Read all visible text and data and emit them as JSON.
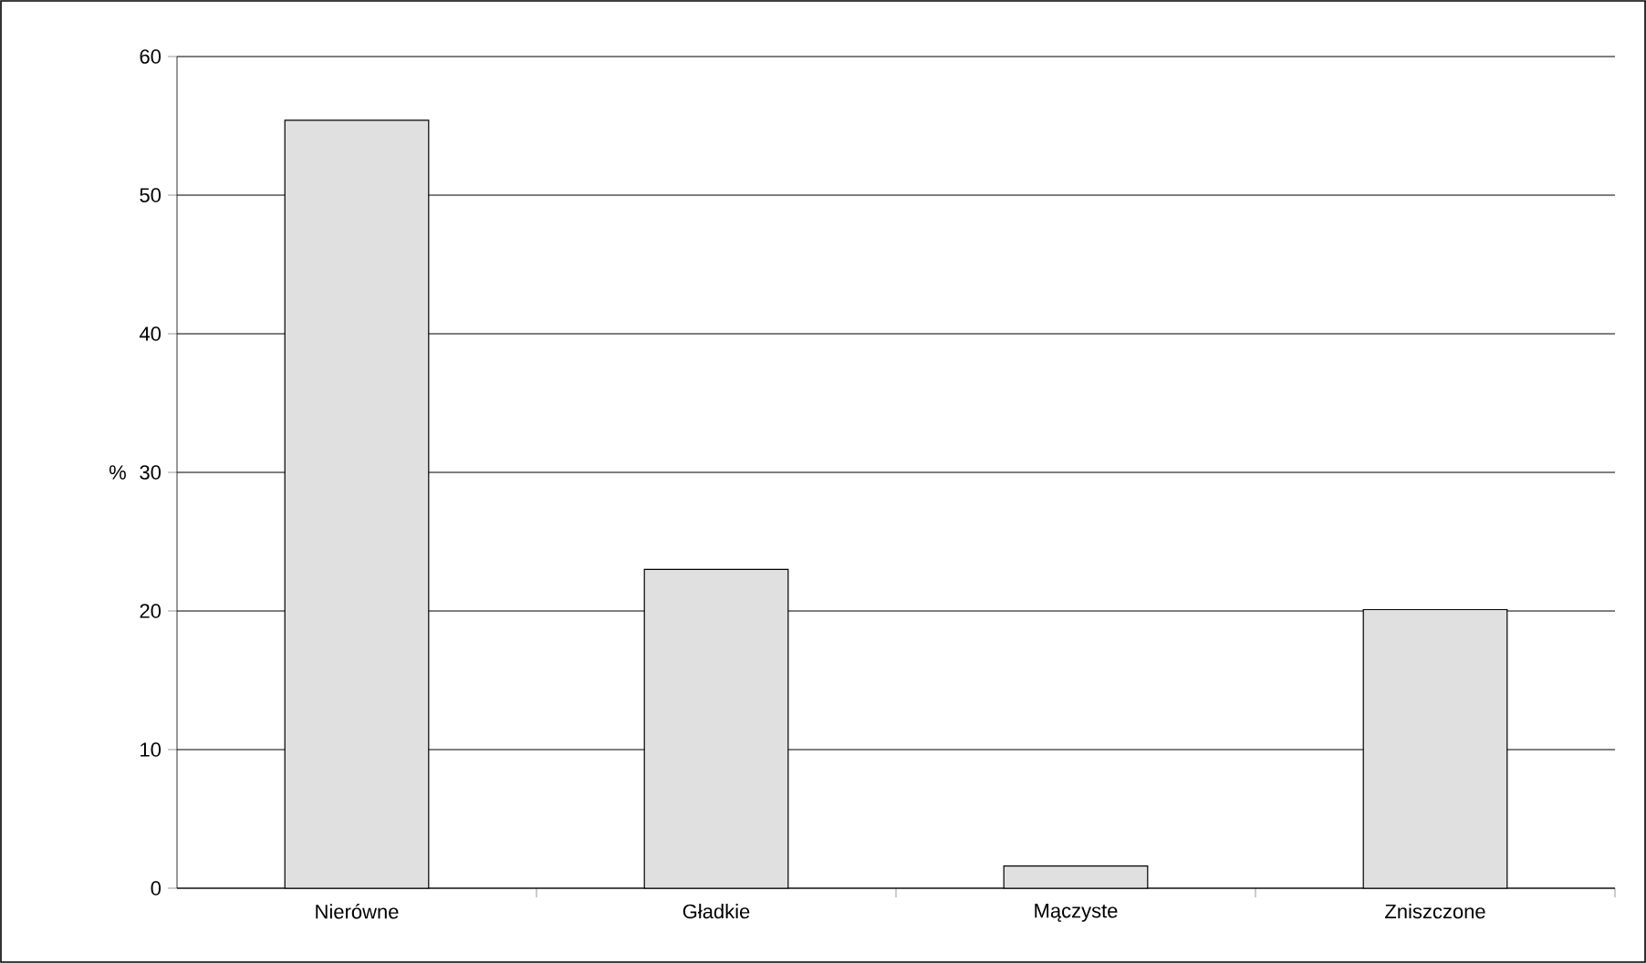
{
  "chart_data": {
    "type": "bar",
    "ylabel": "%",
    "categories": [
      "Nierówne",
      "Gładkie",
      "Mączyste",
      "Zniszczone"
    ],
    "values": [
      55.4,
      23.0,
      1.6,
      20.1
    ],
    "color": "#e0e0e0",
    "ylim": [
      0,
      60
    ],
    "yticks": [
      0,
      10,
      20,
      30,
      40,
      50,
      60
    ],
    "grid": "y"
  }
}
